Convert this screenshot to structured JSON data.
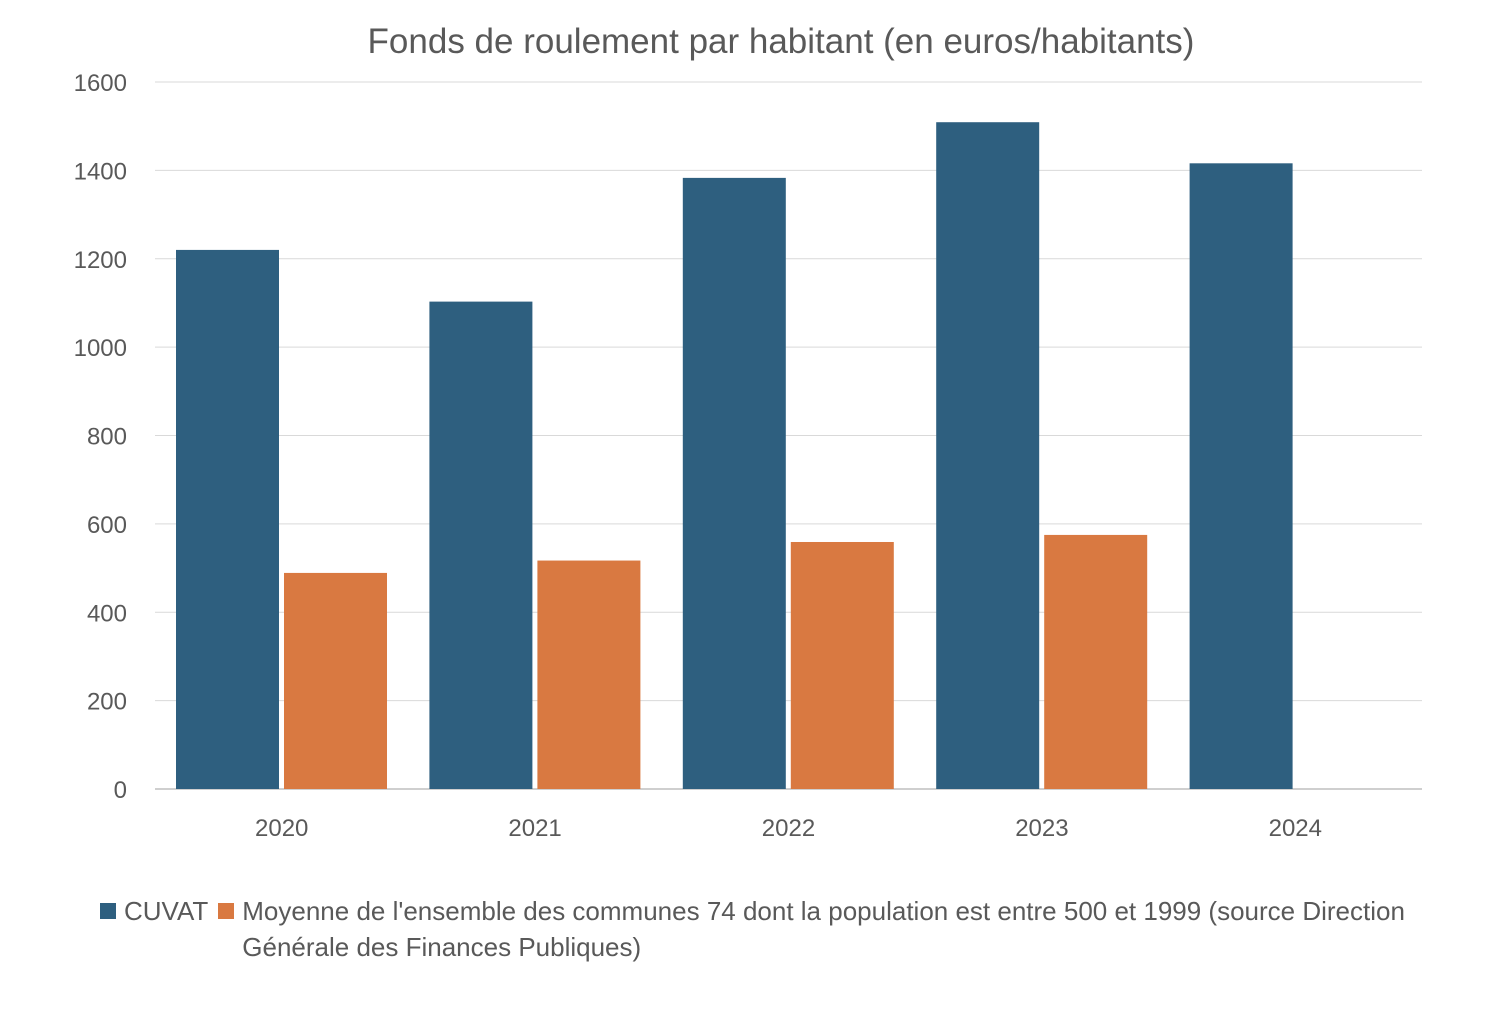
{
  "chart_data": {
    "type": "bar",
    "title": "Fonds de roulement par habitant (en euros/habitants)",
    "categories": [
      "2020",
      "2021",
      "2022",
      "2023",
      "2024"
    ],
    "series": [
      {
        "name": "CUVAT",
        "color": "#2e5f7f",
        "values": [
          1220,
          1103,
          1383,
          1509,
          1416
        ]
      },
      {
        "name": "Moyenne de l'ensemble des communes 74 dont la population est entre 500 et 1999 (source Direction Générale des Finances Publiques)",
        "color": "#d97941",
        "values": [
          489,
          517,
          559,
          575,
          null
        ]
      }
    ],
    "ylim": [
      0,
      1600
    ],
    "yticks": [
      "0",
      "200",
      "400",
      "600",
      "800",
      "1000",
      "1200",
      "1400",
      "1600"
    ],
    "grid": true,
    "legend_position": "bottom"
  }
}
